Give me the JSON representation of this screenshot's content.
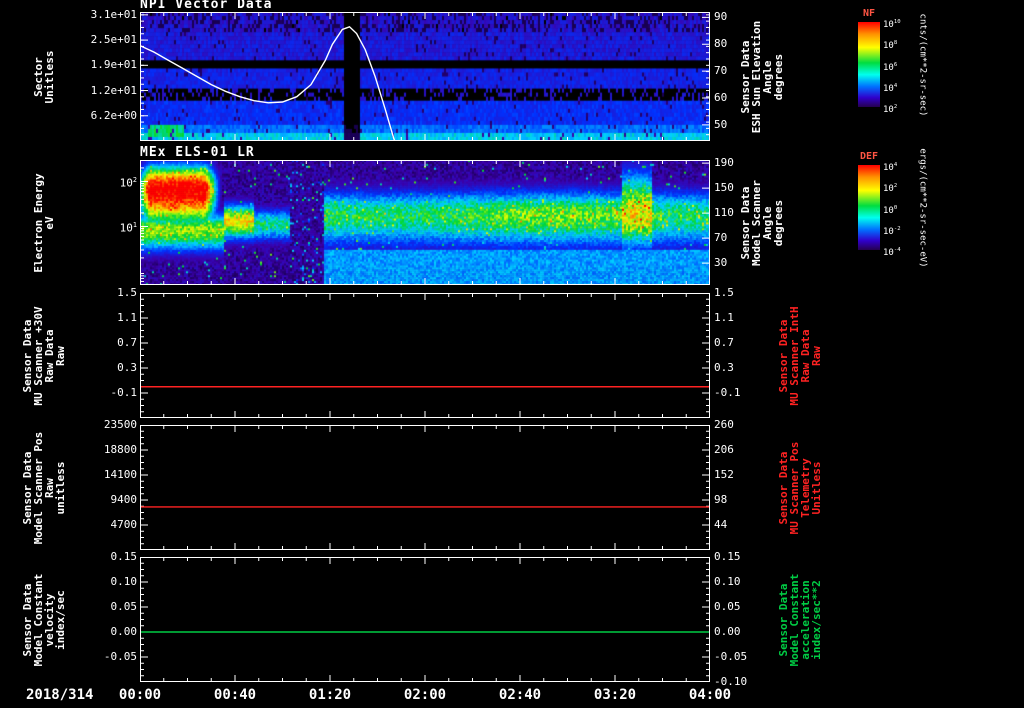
{
  "window": {
    "background": "#000000",
    "foreground": "#ffffff"
  },
  "colors": {
    "axis": "#ffffff",
    "red_trace": "#ff2222",
    "green_trace": "#00cc44",
    "colorbar_title": "#ff5544"
  },
  "x_axis": {
    "date_label": "2018/314",
    "tick_labels": [
      "00:00",
      "00:40",
      "01:20",
      "02:00",
      "02:40",
      "03:20",
      "04:00"
    ],
    "range_hours": [
      0,
      4
    ],
    "minor_tick_minutes": 10
  },
  "chart_data": [
    {
      "type": "heatmap",
      "title": "NPI Vector Data",
      "ylabel_lines": [
        "Sector",
        "Unitless"
      ],
      "yscale": "linear",
      "ylim": [
        0,
        31.7
      ],
      "yticks": [
        {
          "label": "3.1e+01",
          "value": 31.0
        },
        {
          "label": "2.5e+01",
          "value": 24.8
        },
        {
          "label": "1.9e+01",
          "value": 18.6
        },
        {
          "label": "1.2e+01",
          "value": 12.4
        },
        {
          "label": "6.2e+00",
          "value": 6.2
        }
      ],
      "right_axis": {
        "label_lines": [
          "Sensor Data",
          "ESH Sun Elevation",
          "Angle",
          "degrees"
        ],
        "color": "#ffffff",
        "lim": [
          44,
          92
        ],
        "ticks": [
          {
            "label": "90",
            "value": 90
          },
          {
            "label": "80",
            "value": 80
          },
          {
            "label": "70",
            "value": 70
          },
          {
            "label": "60",
            "value": 60
          },
          {
            "label": "50",
            "value": 50
          }
        ]
      },
      "colorbar": {
        "title": "NF",
        "unit": "cnts/(cm**2-sr-sec)",
        "scale": "log",
        "tick_labels": [
          "10^10",
          "10^8",
          "10^6",
          "10^4",
          "10^2"
        ]
      },
      "overlay_series": {
        "name": "ESH Sun Elevation Angle",
        "color": "#ffffff",
        "axis": "right",
        "points_hours_degrees": [
          [
            0,
            79.5
          ],
          [
            0.1,
            77
          ],
          [
            0.2,
            74
          ],
          [
            0.3,
            71
          ],
          [
            0.4,
            68
          ],
          [
            0.5,
            65
          ],
          [
            0.6,
            62.5
          ],
          [
            0.7,
            60.5
          ],
          [
            0.8,
            59
          ],
          [
            0.9,
            58.2
          ],
          [
            1.0,
            58.5
          ],
          [
            1.1,
            60.5
          ],
          [
            1.2,
            65
          ],
          [
            1.3,
            74
          ],
          [
            1.35,
            80
          ],
          [
            1.42,
            85.5
          ],
          [
            1.47,
            86.5
          ],
          [
            1.52,
            84
          ],
          [
            1.58,
            78
          ],
          [
            1.65,
            68
          ],
          [
            1.72,
            56
          ],
          [
            1.78,
            45
          ],
          [
            1.82,
            40
          ]
        ]
      },
      "features": {
        "background": "low count rates (blue/violet) across all sectors",
        "no_data_sector_bands": [
          [
            18,
            19
          ],
          [
            10,
            12
          ]
        ],
        "bright_low_sectors": [
          0,
          3
        ],
        "data_gap_hours": [
          1.43,
          1.53
        ]
      }
    },
    {
      "type": "heatmap",
      "title": "MEx ELS-01 LR",
      "ylabel_lines": [
        "Electron Energy",
        "eV"
      ],
      "yscale": "log",
      "ylim": [
        0.5,
        300
      ],
      "yticks": [
        {
          "label": "10^2",
          "value": 100
        },
        {
          "label": "10^1",
          "value": 10
        }
      ],
      "right_axis": {
        "label_lines": [
          "Sensor Data",
          "Model Scanner",
          "Angle",
          "degrees"
        ],
        "color": "#ffffff",
        "lim": [
          -5,
          195
        ],
        "ticks": [
          {
            "label": "190",
            "value": 190
          },
          {
            "label": "150",
            "value": 150
          },
          {
            "label": "110",
            "value": 110
          },
          {
            "label": "70",
            "value": 70
          },
          {
            "label": "30",
            "value": 30
          }
        ]
      },
      "colorbar": {
        "title": "DEF",
        "unit": "ergs/(cm**2-sr-sec-eV)",
        "scale": "log",
        "tick_labels": [
          "10^4",
          "10^2",
          "10^0",
          "10^-2",
          "10^-4"
        ]
      },
      "features": {
        "intense_flux": "red/orange 20-200 eV from 00:02 to 00:33",
        "low_energy_band": "yellow-green 6-25 eV from 00:33 to 01:03",
        "dropout_hours": [
          1.05,
          1.28
        ],
        "steady_band": "green 5-60 eV from 01:20 to 04:00",
        "enhancement_hours": [
          3.38,
          3.58
        ]
      }
    },
    {
      "type": "line",
      "title": "",
      "ylabel_lines": [
        "Sensor Data",
        "MU Scanner +30V",
        "Raw Data",
        "Raw"
      ],
      "yscale": "linear",
      "ylim": [
        -0.5,
        1.5
      ],
      "yticks": [
        {
          "label": "1.5",
          "value": 1.5
        },
        {
          "label": "1.1",
          "value": 1.1
        },
        {
          "label": "0.7",
          "value": 0.7
        },
        {
          "label": "0.3",
          "value": 0.3
        },
        {
          "label": "-0.1",
          "value": -0.1
        }
      ],
      "right_axis": {
        "label_lines": [
          "Sensor Data",
          "MU Scanner IntH",
          "Raw Data",
          "Raw"
        ],
        "color": "#ff2222",
        "lim": [
          -0.5,
          1.5
        ],
        "ticks": [
          {
            "label": "1.5",
            "value": 1.5
          },
          {
            "label": "1.1",
            "value": 1.1
          },
          {
            "label": "0.7",
            "value": 0.7
          },
          {
            "label": "0.3",
            "value": 0.3
          },
          {
            "label": "-0.1",
            "value": -0.1
          }
        ]
      },
      "series": [
        {
          "name": "MU Scanner +30V",
          "color": "#ff2222",
          "constant_value": 0.0
        }
      ]
    },
    {
      "type": "line",
      "title": "",
      "ylabel_lines": [
        "Sensor Data",
        "Model Scanner Pos",
        "Raw",
        "unitless"
      ],
      "yscale": "linear",
      "ylim": [
        0,
        23500
      ],
      "yticks": [
        {
          "label": "23500",
          "value": 23500
        },
        {
          "label": "18800",
          "value": 18800
        },
        {
          "label": "14100",
          "value": 14100
        },
        {
          "label": "9400",
          "value": 9400
        },
        {
          "label": "4700",
          "value": 4700
        }
      ],
      "right_axis": {
        "label_lines": [
          "Sensor Data",
          "MU Scanner Pos",
          "Telemetry",
          "Unitless"
        ],
        "color": "#ff2222",
        "lim": [
          -10,
          260
        ],
        "ticks": [
          {
            "label": "260",
            "value": 260
          },
          {
            "label": "206",
            "value": 206
          },
          {
            "label": "152",
            "value": 152
          },
          {
            "label": "98",
            "value": 98
          },
          {
            "label": "44",
            "value": 44
          }
        ]
      },
      "series": [
        {
          "name": "Model Scanner Pos",
          "color": "#ff2222",
          "constant_value": 8100
        }
      ]
    },
    {
      "type": "line",
      "title": "",
      "ylabel_lines": [
        "Sensor Data",
        "Model Constant",
        "velocity",
        "index/sec"
      ],
      "yscale": "linear",
      "ylim": [
        -0.1,
        0.15
      ],
      "yticks": [
        {
          "label": "0.15",
          "value": 0.15
        },
        {
          "label": "0.10",
          "value": 0.1
        },
        {
          "label": "0.05",
          "value": 0.05
        },
        {
          "label": "0.00",
          "value": 0.0
        },
        {
          "label": "-0.05",
          "value": -0.05
        }
      ],
      "right_axis": {
        "label_lines": [
          "Sensor Data",
          "Model Constant",
          "acceleration",
          "index/sec**2"
        ],
        "color": "#00cc44",
        "lim": [
          -0.1,
          0.15
        ],
        "ticks": [
          {
            "label": "0.15",
            "value": 0.15
          },
          {
            "label": "0.10",
            "value": 0.1
          },
          {
            "label": "0.05",
            "value": 0.05
          },
          {
            "label": "0.00",
            "value": 0.0
          },
          {
            "label": "-0.05",
            "value": -0.05
          },
          {
            "label": "-0.10",
            "value": -0.1
          }
        ]
      },
      "series": [
        {
          "name": "Model Constant velocity",
          "color": "#00cc44",
          "constant_value": 0.0
        }
      ]
    }
  ]
}
